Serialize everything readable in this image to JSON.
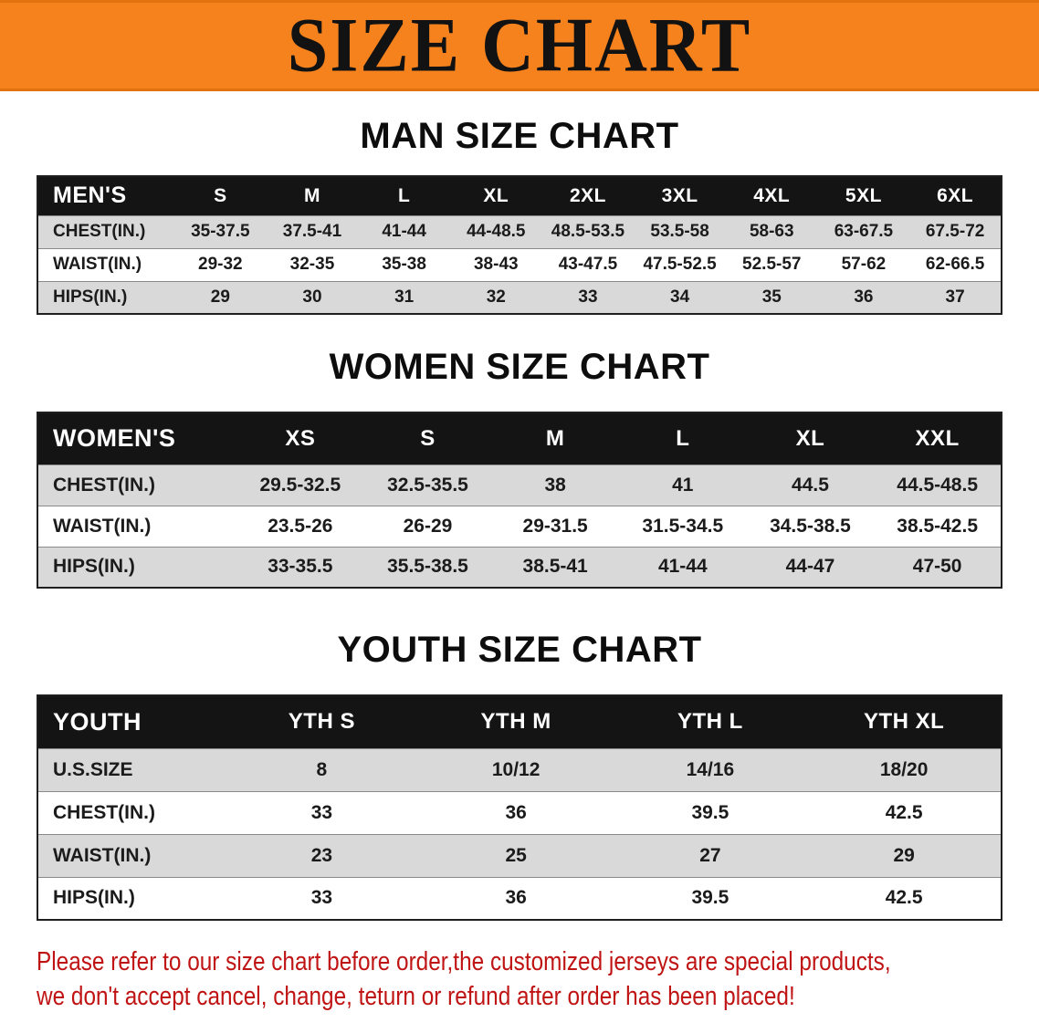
{
  "banner": {
    "title": "SIZE CHART"
  },
  "colors": {
    "banner_bg": "#F6821E",
    "banner_edge": "#E2720D",
    "table_header_bg": "#141414",
    "table_header_text": "#FFFFFF",
    "row_shaded": "#D9D9D9",
    "row_plain": "#FFFFFF",
    "disclaimer_text": "#C01414"
  },
  "sections": [
    {
      "heading": "MAN SIZE CHART",
      "table": {
        "header": [
          "MEN'S",
          "S",
          "M",
          "L",
          "XL",
          "2XL",
          "3XL",
          "4XL",
          "5XL",
          "6XL"
        ],
        "rows": [
          [
            "CHEST(IN.)",
            "35-37.5",
            "37.5-41",
            "41-44",
            "44-48.5",
            "48.5-53.5",
            "53.5-58",
            "58-63",
            "63-67.5",
            "67.5-72"
          ],
          [
            "WAIST(IN.)",
            "29-32",
            "32-35",
            "35-38",
            "38-43",
            "43-47.5",
            "47.5-52.5",
            "52.5-57",
            "57-62",
            "62-66.5"
          ],
          [
            "HIPS(IN.)",
            "29",
            "30",
            "31",
            "32",
            "33",
            "34",
            "35",
            "36",
            "37"
          ]
        ]
      }
    },
    {
      "heading": "WOMEN SIZE CHART",
      "table": {
        "header": [
          "WOMEN'S",
          "XS",
          "S",
          "M",
          "L",
          "XL",
          "XXL"
        ],
        "rows": [
          [
            "CHEST(IN.)",
            "29.5-32.5",
            "32.5-35.5",
            "38",
            "41",
            "44.5",
            "44.5-48.5"
          ],
          [
            "WAIST(IN.)",
            "23.5-26",
            "26-29",
            "29-31.5",
            "31.5-34.5",
            "34.5-38.5",
            "38.5-42.5"
          ],
          [
            "HIPS(IN.)",
            "33-35.5",
            "35.5-38.5",
            "38.5-41",
            "41-44",
            "44-47",
            "47-50"
          ]
        ]
      }
    },
    {
      "heading": "YOUTH SIZE CHART",
      "table": {
        "header": [
          "YOUTH",
          "YTH S",
          "YTH M",
          "YTH L",
          "YTH XL"
        ],
        "rows": [
          [
            "U.S.SIZE",
            "8",
            "10/12",
            "14/16",
            "18/20"
          ],
          [
            "CHEST(IN.)",
            "33",
            "36",
            "39.5",
            "42.5"
          ],
          [
            "WAIST(IN.)",
            "23",
            "25",
            "27",
            "29"
          ],
          [
            "HIPS(IN.)",
            "33",
            "36",
            "39.5",
            "42.5"
          ]
        ]
      }
    }
  ],
  "disclaimer": {
    "lines": [
      "Please refer to our size chart before order,the customized jerseys are special products,",
      "we don't accept cancel, change, teturn or refund after order has been placed!"
    ]
  }
}
